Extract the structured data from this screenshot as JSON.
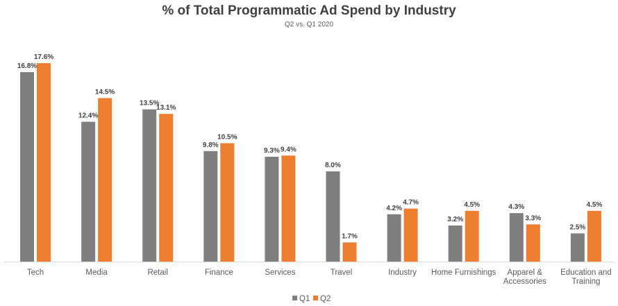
{
  "chart_data": {
    "type": "bar",
    "title": "% of Total Programmatic Ad Spend by Industry",
    "subtitle": "Q2 vs. Q1 2020",
    "xlabel": "",
    "ylabel": "",
    "ylim": [
      0,
      18
    ],
    "grid": false,
    "legend_position": "bottom",
    "categories": [
      [
        "Tech"
      ],
      [
        "Media"
      ],
      [
        "Retail"
      ],
      [
        "Finance"
      ],
      [
        "Services"
      ],
      [
        "Travel"
      ],
      [
        "Industry"
      ],
      [
        "Home Furnishings"
      ],
      [
        "Apparel &",
        "Accessories"
      ],
      [
        "Education and",
        "Training"
      ]
    ],
    "series": [
      {
        "name": "Q1",
        "color": "#7f7f7f",
        "values": [
          16.8,
          12.4,
          13.5,
          9.8,
          9.3,
          8.0,
          4.2,
          3.2,
          4.3,
          2.5
        ],
        "labels": [
          "16.8%",
          "12.4%",
          "13.5%",
          "9.8%",
          "9.3%",
          "8.0%",
          "4.2%",
          "3.2%",
          "4.3%",
          "2.5%"
        ]
      },
      {
        "name": "Q2",
        "color": "#ed7d31",
        "values": [
          17.6,
          14.5,
          13.1,
          10.5,
          9.4,
          1.7,
          4.7,
          4.5,
          3.3,
          4.5
        ],
        "labels": [
          "17.6%",
          "14.5%",
          "13.1%",
          "10.5%",
          "9.4%",
          "1.7%",
          "4.7%",
          "4.5%",
          "3.3%",
          "4.5%"
        ]
      }
    ]
  }
}
